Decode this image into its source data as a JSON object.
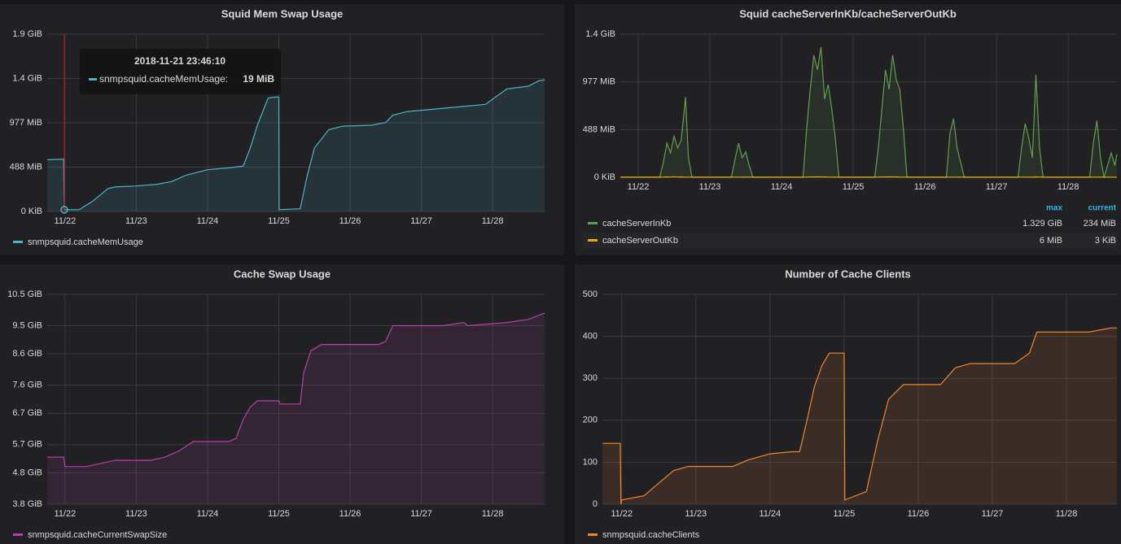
{
  "chart_data": [
    {
      "type": "line",
      "title": "Squid Mem Swap Usage",
      "fill": true,
      "x": [
        21.75,
        21.98,
        21.99,
        22.2,
        22.4,
        22.6,
        22.7,
        23.0,
        23.3,
        23.5,
        23.7,
        24.0,
        24.3,
        24.5,
        24.6,
        24.7,
        24.8,
        24.85,
        24.95,
        25.0,
        25.005,
        25.3,
        25.4,
        25.5,
        25.7,
        25.9,
        26.3,
        26.5,
        26.6,
        26.8,
        27.5,
        27.9,
        28.2,
        28.5,
        28.65,
        28.73
      ],
      "series": [
        {
          "name": "snmpsquid.cacheMemUsage",
          "color": "#4fb3c6",
          "values": [
            570,
            575,
            19,
            20,
            120,
            250,
            270,
            280,
            300,
            330,
            400,
            460,
            480,
            500,
            700,
            950,
            1150,
            1250,
            1260,
            1260,
            20,
            30,
            400,
            700,
            900,
            940,
            950,
            980,
            1060,
            1100,
            1150,
            1180,
            1350,
            1380,
            1440,
            1450
          ]
        }
      ],
      "xlim": [
        21.75,
        28.73
      ],
      "ylim": [
        0,
        1953
      ],
      "xticks": [
        {
          "value": 22,
          "label": "11/22"
        },
        {
          "value": 23,
          "label": "11/23"
        },
        {
          "value": 24,
          "label": "11/24"
        },
        {
          "value": 25,
          "label": "11/25"
        },
        {
          "value": 26,
          "label": "11/26"
        },
        {
          "value": 27,
          "label": "11/27"
        },
        {
          "value": 28,
          "label": "11/28"
        }
      ],
      "yticks": [
        {
          "value": 0,
          "label": "0 KiB"
        },
        {
          "value": 488,
          "label": "488 MiB"
        },
        {
          "value": 977,
          "label": "977 MiB"
        },
        {
          "value": 1465,
          "label": "1.4 GiB"
        },
        {
          "value": 1953,
          "label": "1.9 GiB"
        }
      ],
      "grid": true,
      "tooltip": {
        "x": 21.99,
        "title": "2018-11-21 23:46:10",
        "label": "snmpsquid.cacheMemUsage:",
        "value": 19,
        "value_label": "19 MiB"
      }
    },
    {
      "type": "line",
      "title": "Squid cacheServerInKb/cacheServerOutKb",
      "fill": true,
      "x": [
        21.75,
        22.3,
        22.35,
        22.4,
        22.45,
        22.5,
        22.55,
        22.6,
        22.66,
        22.7,
        22.75,
        23.3,
        23.35,
        23.4,
        23.45,
        23.5,
        23.55,
        23.6,
        24.3,
        24.35,
        24.4,
        24.45,
        24.5,
        24.55,
        24.6,
        24.65,
        24.7,
        24.75,
        24.8,
        25.3,
        25.35,
        25.4,
        25.45,
        25.5,
        25.55,
        25.6,
        25.65,
        25.7,
        25.75,
        26.3,
        26.35,
        26.4,
        26.45,
        26.5,
        26.55,
        27.3,
        27.35,
        27.4,
        27.45,
        27.5,
        27.55,
        27.6,
        27.65,
        28.3,
        28.35,
        28.4,
        28.45,
        28.5,
        28.6,
        28.65,
        28.68
      ],
      "series": [
        {
          "name": "cacheServerInKb",
          "color": "#629e51",
          "legend_values": [
            "1.329 GiB",
            "234 MiB"
          ],
          "values": [
            0,
            0,
            150,
            350,
            250,
            420,
            300,
            380,
            820,
            200,
            0,
            0,
            180,
            350,
            200,
            260,
            120,
            0,
            0,
            500,
            900,
            1250,
            1100,
            1330,
            800,
            950,
            700,
            400,
            0,
            0,
            300,
            700,
            1100,
            900,
            1250,
            1000,
            900,
            500,
            0,
            0,
            450,
            600,
            300,
            150,
            0,
            0,
            300,
            550,
            400,
            200,
            1050,
            300,
            0,
            0,
            350,
            580,
            200,
            0,
            250,
            120,
            234
          ]
        },
        {
          "name": "cacheServerOutKb",
          "color": "#e5ac0e",
          "legend_values": [
            "6 MiB",
            "3 KiB"
          ],
          "values": [
            1,
            1,
            2,
            3,
            2,
            6,
            2,
            3,
            2,
            1,
            1,
            1,
            2,
            2,
            2,
            1,
            1,
            1,
            1,
            2,
            3,
            3,
            4,
            3,
            3,
            2,
            2,
            1,
            1,
            1,
            2,
            3,
            3,
            4,
            3,
            3,
            2,
            2,
            1,
            1,
            2,
            2,
            2,
            1,
            1,
            1,
            2,
            2,
            2,
            1,
            3,
            2,
            1,
            1,
            2,
            2,
            1,
            1,
            2,
            2,
            0.003
          ]
        }
      ],
      "legend_columns": [
        "max",
        "current"
      ],
      "xlim": [
        21.75,
        28.68
      ],
      "ylim": [
        0,
        1465
      ],
      "xticks": [
        {
          "value": 22,
          "label": "11/22"
        },
        {
          "value": 23,
          "label": "11/23"
        },
        {
          "value": 24,
          "label": "11/24"
        },
        {
          "value": 25,
          "label": "11/25"
        },
        {
          "value": 26,
          "label": "11/26"
        },
        {
          "value": 27,
          "label": "11/27"
        },
        {
          "value": 28,
          "label": "11/28"
        }
      ],
      "yticks": [
        {
          "value": 0,
          "label": "0 KiB"
        },
        {
          "value": 488,
          "label": "488 MiB"
        },
        {
          "value": 977,
          "label": "977 MiB"
        },
        {
          "value": 1465,
          "label": "1.4 GiB"
        }
      ],
      "grid": true
    },
    {
      "type": "line",
      "title": "Cache Swap Usage",
      "fill": true,
      "x": [
        21.75,
        21.98,
        22.0,
        22.3,
        22.5,
        22.7,
        23.2,
        23.4,
        23.6,
        23.8,
        24.3,
        24.4,
        24.5,
        24.6,
        24.7,
        25.0,
        25.02,
        25.3,
        25.35,
        25.45,
        25.6,
        26.4,
        26.5,
        26.6,
        27.3,
        27.6,
        27.65,
        28.2,
        28.5,
        28.73
      ],
      "series": [
        {
          "name": "snmpsquid.cacheCurrentSwapSize",
          "color": "#b642a8",
          "values": [
            5.3,
            5.3,
            5.0,
            5.0,
            5.1,
            5.2,
            5.2,
            5.3,
            5.5,
            5.8,
            5.8,
            5.9,
            6.5,
            6.9,
            7.1,
            7.1,
            7.0,
            7.0,
            8.0,
            8.7,
            8.9,
            8.9,
            9.0,
            9.5,
            9.5,
            9.6,
            9.5,
            9.6,
            9.7,
            9.9
          ]
        }
      ],
      "xlim": [
        21.75,
        28.73
      ],
      "ylim": [
        3.8,
        10.5
      ],
      "xticks": [
        {
          "value": 22,
          "label": "11/22"
        },
        {
          "value": 23,
          "label": "11/23"
        },
        {
          "value": 24,
          "label": "11/24"
        },
        {
          "value": 25,
          "label": "11/25"
        },
        {
          "value": 26,
          "label": "11/26"
        },
        {
          "value": 27,
          "label": "11/27"
        },
        {
          "value": 28,
          "label": "11/28"
        }
      ],
      "yticks": [
        {
          "value": 3.8,
          "label": "3.8 GiB"
        },
        {
          "value": 4.8,
          "label": "4.8 GiB"
        },
        {
          "value": 5.7,
          "label": "5.7 GiB"
        },
        {
          "value": 6.7,
          "label": "6.7 GiB"
        },
        {
          "value": 7.6,
          "label": "7.6 GiB"
        },
        {
          "value": 8.6,
          "label": "8.6 GiB"
        },
        {
          "value": 9.5,
          "label": "9.5 GiB"
        },
        {
          "value": 10.5,
          "label": "10.5 GiB"
        }
      ],
      "grid": true
    },
    {
      "type": "line",
      "title": "Number of Cache Clients",
      "fill": true,
      "x": [
        21.74,
        21.98,
        21.99,
        22.0,
        22.3,
        22.5,
        22.7,
        22.9,
        23.5,
        23.7,
        24.0,
        24.3,
        24.4,
        24.5,
        24.6,
        24.7,
        24.8,
        25.0,
        25.01,
        25.3,
        25.45,
        25.6,
        25.8,
        26.3,
        26.5,
        26.7,
        27.3,
        27.5,
        27.6,
        28.3,
        28.6,
        28.68
      ],
      "series": [
        {
          "name": "snmpsquid.cacheClients",
          "color": "#f0862c",
          "values": [
            145,
            145,
            0,
            10,
            20,
            50,
            80,
            90,
            90,
            105,
            120,
            125,
            125,
            200,
            280,
            330,
            360,
            360,
            10,
            30,
            150,
            250,
            285,
            285,
            325,
            335,
            335,
            360,
            410,
            410,
            420,
            420
          ]
        }
      ],
      "xlim": [
        21.74,
        28.68
      ],
      "ylim": [
        0,
        500
      ],
      "xticks": [
        {
          "value": 22,
          "label": "11/22"
        },
        {
          "value": 23,
          "label": "11/23"
        },
        {
          "value": 24,
          "label": "11/24"
        },
        {
          "value": 25,
          "label": "11/25"
        },
        {
          "value": 26,
          "label": "11/26"
        },
        {
          "value": 27,
          "label": "11/27"
        },
        {
          "value": 28,
          "label": "11/28"
        }
      ],
      "yticks": [
        0,
        100,
        200,
        300,
        400,
        500
      ],
      "grid": true
    }
  ]
}
